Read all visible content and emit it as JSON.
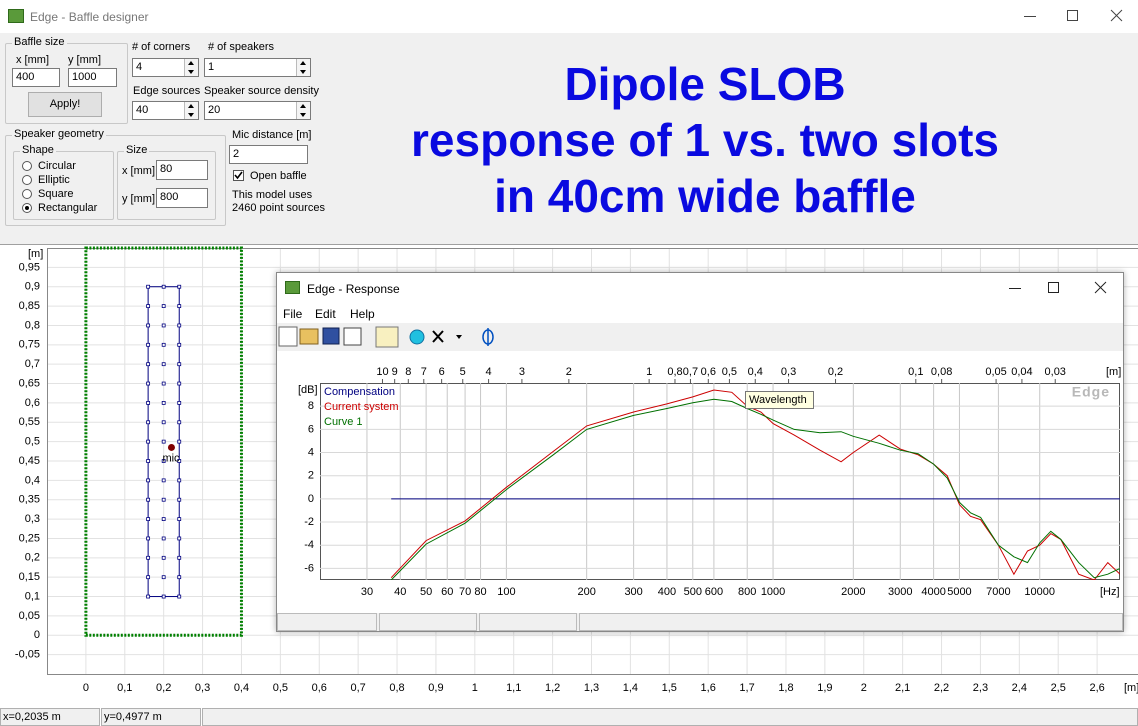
{
  "window": {
    "title": "Edge - Baffle designer"
  },
  "controls": {
    "baffle_size": {
      "label": "Baffle size",
      "x_label": "x [mm]",
      "x_value": "400",
      "y_label": "y [mm]",
      "y_value": "1000",
      "apply": "Apply!"
    },
    "corners": {
      "label": "# of corners",
      "value": "4"
    },
    "speakers": {
      "label": "# of speakers",
      "value": "1"
    },
    "edge_sources": {
      "label": "Edge sources",
      "value": "40"
    },
    "density": {
      "label": "Speaker source density",
      "value": "20"
    },
    "geometry": {
      "label": "Speaker geometry",
      "shape_label": "Shape",
      "shapes": [
        "Circular",
        "Elliptic",
        "Square",
        "Rectangular"
      ],
      "selected_shape": "Rectangular",
      "size_label": "Size",
      "size_x_label": "x [mm]",
      "size_x_value": "80",
      "size_y_label": "y [mm]",
      "size_y_value": "800"
    },
    "mic_distance": {
      "label": "Mic distance [m]",
      "value": "2"
    },
    "open_baffle": {
      "label": "Open baffle",
      "checked": true
    },
    "model_note": [
      "This model uses",
      "2460 point sources"
    ]
  },
  "annotation": [
    "Dipole SLOB",
    "response of 1 vs. two slots",
    "in 40cm wide baffle"
  ],
  "layout_plot": {
    "x_unit": "[m]",
    "y_unit": "[m]",
    "xlim": [
      -0.1,
      2.7
    ],
    "ylim": [
      -0.1,
      1.0
    ],
    "xticks": [
      0,
      {
        "value": 0.1,
        "label": "0,1"
      },
      {
        "value": 0.2,
        "label": "0,2"
      },
      {
        "value": 0.3,
        "label": "0,3"
      },
      {
        "value": 0.4,
        "label": "0,4"
      },
      {
        "value": 0.5,
        "label": "0,5"
      },
      {
        "value": 0.6,
        "label": "0,6"
      },
      {
        "value": 0.7,
        "label": "0,7"
      },
      {
        "value": 0.8,
        "label": "0,8"
      },
      {
        "value": 0.9,
        "label": "0,9"
      },
      1,
      {
        "value": 1.1,
        "label": "1,1"
      },
      {
        "value": 1.2,
        "label": "1,2"
      },
      {
        "value": 1.3,
        "label": "1,3"
      },
      {
        "value": 1.4,
        "label": "1,4"
      },
      {
        "value": 1.5,
        "label": "1,5"
      },
      {
        "value": 1.6,
        "label": "1,6"
      },
      {
        "value": 1.7,
        "label": "1,7"
      },
      {
        "value": 1.8,
        "label": "1,8"
      },
      {
        "value": 1.9,
        "label": "1,9"
      },
      2,
      {
        "value": 2.1,
        "label": "2,1"
      },
      {
        "value": 2.2,
        "label": "2,2"
      },
      {
        "value": 2.3,
        "label": "2,3"
      },
      {
        "value": 2.4,
        "label": "2,4"
      },
      {
        "value": 2.5,
        "label": "2,5"
      },
      {
        "value": 2.6,
        "label": "2,6"
      }
    ],
    "yticks": [
      {
        "value": -0.05,
        "label": "-0,05"
      },
      0,
      {
        "value": 0.05,
        "label": "0,05"
      },
      {
        "value": 0.1,
        "label": "0,1"
      },
      {
        "value": 0.15,
        "label": "0,15"
      },
      {
        "value": 0.2,
        "label": "0,2"
      },
      {
        "value": 0.25,
        "label": "0,25"
      },
      {
        "value": 0.3,
        "label": "0,3"
      },
      {
        "value": 0.35,
        "label": "0,35"
      },
      {
        "value": 0.4,
        "label": "0,4"
      },
      {
        "value": 0.45,
        "label": "0,45"
      },
      {
        "value": 0.5,
        "label": "0,5"
      },
      {
        "value": 0.55,
        "label": "0,55"
      },
      {
        "value": 0.6,
        "label": "0,6"
      },
      {
        "value": 0.65,
        "label": "0,65"
      },
      {
        "value": 0.7,
        "label": "0,7"
      },
      {
        "value": 0.75,
        "label": "0,75"
      },
      {
        "value": 0.8,
        "label": "0,8"
      },
      {
        "value": 0.85,
        "label": "0,85"
      },
      {
        "value": 0.9,
        "label": "0,9"
      },
      {
        "value": 0.95,
        "label": "0,95"
      }
    ],
    "baffle": {
      "x": [
        0,
        0.4
      ],
      "y": [
        0,
        1.0
      ],
      "color": "#008000"
    },
    "speaker": {
      "x": [
        0.16,
        0.24
      ],
      "y": [
        0.1,
        0.9
      ],
      "color": "#000080"
    },
    "mic": {
      "x": 0.22,
      "y": 0.485,
      "label": "mic",
      "color": "#800000"
    }
  },
  "status": {
    "x": "x=0,2035 m",
    "y": "y=0,4977 m"
  },
  "response": {
    "title": "Edge - Response",
    "menu": [
      "File",
      "Edit",
      "Help"
    ],
    "watermark": "Edge",
    "tooltip": "Wavelength",
    "y_unit": "[dB]",
    "x_unit": "[Hz]",
    "x2_unit": "[m]",
    "xscale": "log",
    "xlim": [
      20,
      20000
    ],
    "x2lim": [
      17.15,
      0.01715
    ],
    "ylim": [
      -7,
      10
    ],
    "grid": true,
    "yticks": [
      8,
      6,
      4,
      2,
      0,
      -2,
      -4,
      -6
    ],
    "xticks": [
      30,
      40,
      50,
      60,
      70,
      80,
      100,
      200,
      300,
      400,
      500,
      600,
      800,
      1000,
      2000,
      3000,
      4000,
      5000,
      7000,
      10000
    ],
    "x2ticks": [
      10,
      9,
      8,
      7,
      6,
      5,
      4,
      3,
      2,
      1,
      {
        "value": 0.8,
        "label": "0,8"
      },
      {
        "value": 0.7,
        "label": "0,7"
      },
      {
        "value": 0.6,
        "label": "0,6"
      },
      {
        "value": 0.5,
        "label": "0,5"
      },
      {
        "value": 0.4,
        "label": "0,4"
      },
      {
        "value": 0.3,
        "label": "0,3"
      },
      {
        "value": 0.2,
        "label": "0,2"
      },
      {
        "value": 0.1,
        "label": "0,1"
      },
      {
        "value": 0.08,
        "label": "0,08"
      },
      {
        "value": 0.05,
        "label": "0,05"
      },
      {
        "value": 0.04,
        "label": "0,04"
      },
      {
        "value": 0.03,
        "label": "0,03"
      }
    ],
    "x": [
      37,
      50,
      70,
      100,
      150,
      200,
      300,
      400,
      500,
      600,
      700,
      800,
      900,
      1000,
      1200,
      1500,
      1800,
      2000,
      2500,
      3000,
      3500,
      4000,
      4500,
      5000,
      5500,
      6000,
      7000,
      8000,
      9000,
      10000,
      11000,
      12000,
      14000,
      16000,
      18000,
      20000
    ],
    "series": [
      {
        "name": "Compensation",
        "color": "#000080",
        "values": [
          0,
          0,
          0,
          0,
          0,
          0,
          0,
          0,
          0,
          0,
          0,
          0,
          0,
          0,
          0,
          0,
          0,
          0,
          0,
          0,
          0,
          0,
          0,
          0,
          0,
          0,
          0,
          0,
          0,
          0,
          0,
          0,
          0,
          0,
          0,
          0
        ]
      },
      {
        "name": "Current system",
        "color": "#cc0000",
        "values": [
          -6.8,
          -3.6,
          -1.9,
          1.0,
          4.1,
          6.3,
          7.5,
          8.2,
          8.8,
          9.4,
          9.2,
          8.0,
          7.5,
          6.5,
          5.5,
          4.2,
          3.2,
          4.0,
          5.5,
          4.3,
          3.8,
          3.0,
          2.0,
          -0.5,
          -1.5,
          -1.8,
          -4.0,
          -6.5,
          -4.5,
          -4.0,
          -3.0,
          -3.5,
          -6.5,
          -7.0,
          -5.5,
          -6.5
        ]
      },
      {
        "name": "Curve 1",
        "color": "#007000",
        "values": [
          -7.0,
          -3.9,
          -2.1,
          0.8,
          3.8,
          6.0,
          7.2,
          7.8,
          8.3,
          8.6,
          8.4,
          7.8,
          7.3,
          6.8,
          6.0,
          5.7,
          5.8,
          5.4,
          4.8,
          4.2,
          3.9,
          3.0,
          1.8,
          -0.3,
          -1.2,
          -1.6,
          -4.0,
          -5.0,
          -5.5,
          -3.8,
          -2.8,
          -3.5,
          -5.5,
          -6.8,
          -6.5,
          -6.0
        ]
      }
    ]
  }
}
